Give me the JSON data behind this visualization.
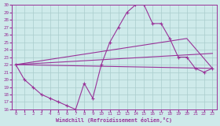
{
  "xlabel": "Windchill (Refroidissement éolien,°C)",
  "xlim": [
    -0.5,
    23.5
  ],
  "ylim": [
    16,
    30
  ],
  "xtick_labels": [
    "0",
    "1",
    "2",
    "3",
    "4",
    "5",
    "6",
    "7",
    "8",
    "9",
    "10",
    "11",
    "12",
    "13",
    "14",
    "15",
    "16",
    "17",
    "18",
    "19",
    "20",
    "21",
    "22",
    "23"
  ],
  "xtick_vals": [
    0,
    1,
    2,
    3,
    4,
    5,
    6,
    7,
    8,
    9,
    10,
    11,
    12,
    13,
    14,
    15,
    16,
    17,
    18,
    19,
    20,
    21,
    22,
    23
  ],
  "ytick_vals": [
    16,
    17,
    18,
    19,
    20,
    21,
    22,
    23,
    24,
    25,
    26,
    27,
    28,
    29,
    30
  ],
  "background_color": "#ceeaea",
  "line_color": "#993399",
  "grid_color": "#aacccc",
  "line1_x": [
    0,
    1,
    2,
    3,
    4,
    5,
    6,
    7,
    8,
    9,
    10,
    11,
    12,
    13,
    14,
    15,
    16,
    17,
    18,
    19,
    20,
    21,
    22,
    23
  ],
  "line1_y": [
    22,
    20,
    19,
    18,
    17.5,
    17,
    16.5,
    16,
    19.5,
    17.5,
    22,
    25,
    27,
    29,
    30,
    30,
    27.5,
    27.5,
    25.5,
    23.0,
    23.0,
    21.5,
    21.0,
    21.5
  ],
  "line2_x": [
    0,
    23
  ],
  "line2_y": [
    22,
    21.5
  ],
  "line3_x": [
    0,
    23
  ],
  "line3_y": [
    22,
    23.5
  ],
  "line4_x": [
    0,
    20,
    23
  ],
  "line4_y": [
    22,
    25.5,
    21.5
  ]
}
